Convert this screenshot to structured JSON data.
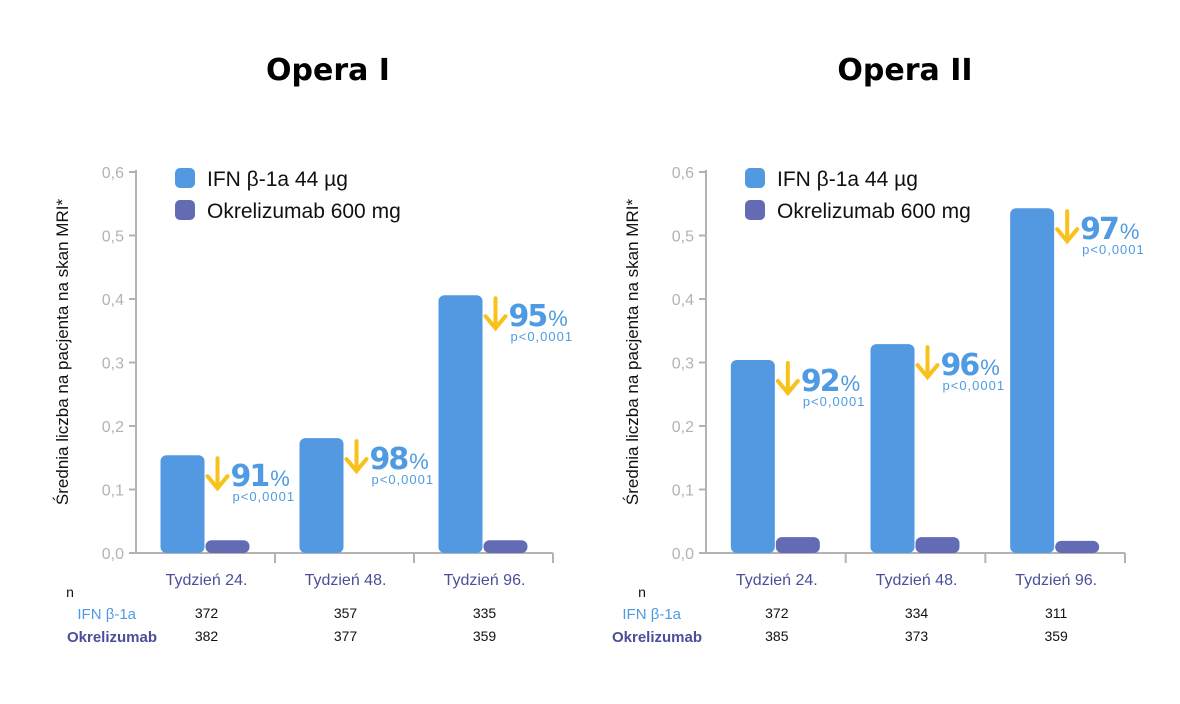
{
  "colors": {
    "ifn": "#5299e2",
    "okrelizumab": "#636bb5",
    "arrow": "#f8c21a",
    "annotation": "#4f9be3",
    "category": "#4a4f9a",
    "axis": "#b3b3b3"
  },
  "chart_data": [
    {
      "type": "bar",
      "title": "Opera I",
      "ylabel": "Średnia liczba na pacjenta na skan MRI*",
      "ylim": [
        0,
        0.6
      ],
      "yticks": [
        "0,0",
        "0,1",
        "0,2",
        "0,3",
        "0,4",
        "0,5",
        "0,6"
      ],
      "categories": [
        "Tydzień 24.",
        "Tydzień 48.",
        "Tydzień 96."
      ],
      "legend_position": "top-left",
      "series": [
        {
          "name": "IFN β-1a 44 µg",
          "values": [
            0.154,
            0.181,
            0.406
          ]
        },
        {
          "name": "Okrelizumab 600 mg",
          "values": [
            0.02,
            0.0,
            0.02
          ]
        }
      ],
      "annotations": [
        {
          "reduction": "91",
          "unit": "%",
          "p": "p<0,0001"
        },
        {
          "reduction": "98",
          "unit": "%",
          "p": "p<0,0001"
        },
        {
          "reduction": "95",
          "unit": "%",
          "p": "p<0,0001"
        }
      ],
      "n_table": {
        "header": "n",
        "rows": [
          {
            "label": "IFN β-1a",
            "values": [
              "372",
              "357",
              "335"
            ]
          },
          {
            "label": "Okrelizumab",
            "values": [
              "382",
              "377",
              "359"
            ]
          }
        ]
      }
    },
    {
      "type": "bar",
      "title": "Opera II",
      "ylabel": "Średnia liczba na pacjenta na skan MRI*",
      "ylim": [
        0,
        0.6
      ],
      "yticks": [
        "0,0",
        "0,1",
        "0,2",
        "0,3",
        "0,4",
        "0,5",
        "0,6"
      ],
      "categories": [
        "Tydzień 24.",
        "Tydzień 48.",
        "Tydzień 96."
      ],
      "legend_position": "top-left",
      "series": [
        {
          "name": "IFN β-1a 44 µg",
          "values": [
            0.304,
            0.329,
            0.543
          ]
        },
        {
          "name": "Okrelizumab 600 mg",
          "values": [
            0.025,
            0.025,
            0.019
          ]
        }
      ],
      "annotations": [
        {
          "reduction": "92",
          "unit": "%",
          "p": "p<0,0001"
        },
        {
          "reduction": "96",
          "unit": "%",
          "p": "p<0,0001"
        },
        {
          "reduction": "97",
          "unit": "%",
          "p": "p<0,0001"
        }
      ],
      "n_table": {
        "header": "n",
        "rows": [
          {
            "label": "IFN β-1a",
            "values": [
              "372",
              "334",
              "311"
            ]
          },
          {
            "label": "Okrelizumab",
            "values": [
              "385",
              "373",
              "359"
            ]
          }
        ]
      }
    }
  ]
}
